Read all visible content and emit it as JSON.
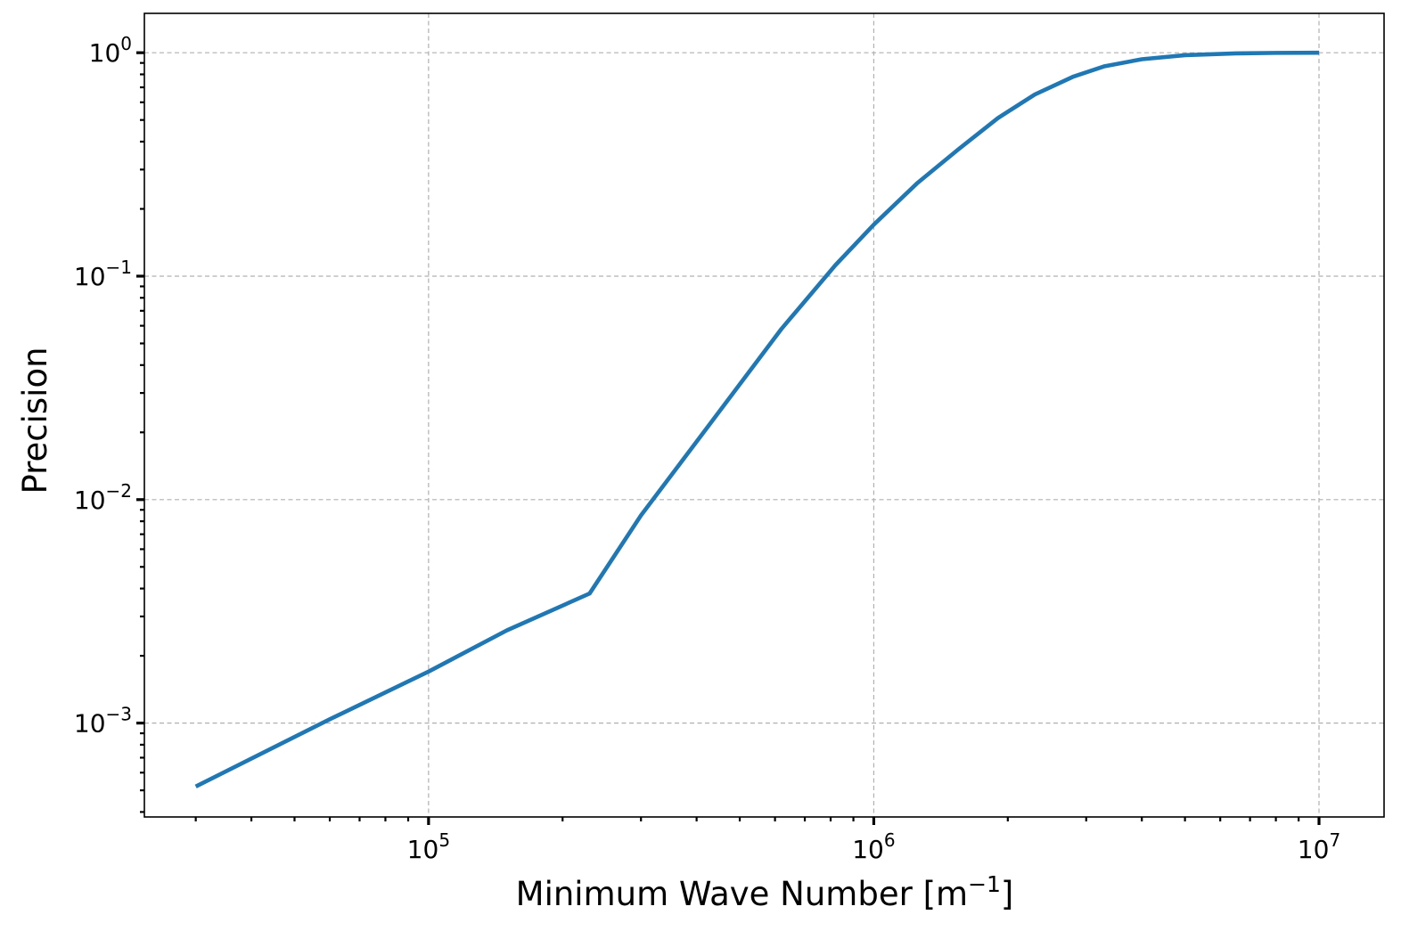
{
  "chart_data": {
    "type": "line",
    "xlabel": "Minimum Wave Number [m",
    "xlabel_sup": "−1",
    "xlabel_suffix": "]",
    "ylabel": "Precision",
    "xscale": "log",
    "yscale": "log",
    "xlim": [
      23000,
      14000000
    ],
    "ylim": [
      0.00038,
      1.5
    ],
    "grid": true,
    "x_ticks": [
      {
        "value": 100000,
        "base": "10",
        "exp": "5"
      },
      {
        "value": 1000000,
        "base": "10",
        "exp": "6"
      },
      {
        "value": 10000000,
        "base": "10",
        "exp": "7"
      }
    ],
    "y_ticks": [
      {
        "value": 0.001,
        "base": "10",
        "exp": "−3"
      },
      {
        "value": 0.01,
        "base": "10",
        "exp": "−2"
      },
      {
        "value": 0.1,
        "base": "10",
        "exp": "−1"
      },
      {
        "value": 1,
        "base": "10",
        "exp": "0"
      }
    ],
    "series": [
      {
        "color": "#1f77b4",
        "x": [
          30000,
          60000,
          100000,
          150000,
          230000,
          300000,
          430000,
          620000,
          820000,
          1000000,
          1250000,
          1550000,
          1900000,
          2300000,
          2800000,
          3300000,
          4000000,
          5000000,
          6500000,
          8000000,
          10000000
        ],
        "y": [
          0.00052,
          0.00104,
          0.0017,
          0.0026,
          0.0038,
          0.0085,
          0.022,
          0.058,
          0.112,
          0.17,
          0.26,
          0.37,
          0.51,
          0.65,
          0.78,
          0.87,
          0.935,
          0.975,
          0.993,
          0.998,
          1.0
        ]
      }
    ]
  }
}
